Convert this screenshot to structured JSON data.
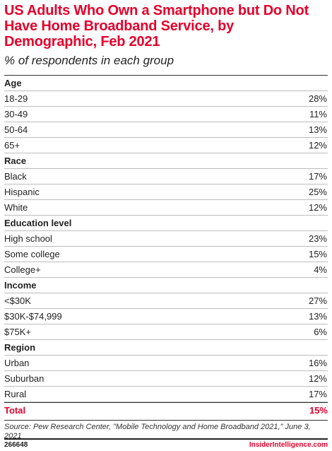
{
  "title": "US Adults Who Own a Smartphone but Do Not Have Home Broadband Service, by Demographic, Feb 2021",
  "subtitle": "% of respondents in each group",
  "chart_data": {
    "type": "table",
    "groups": [
      {
        "name": "Age",
        "rows": [
          {
            "label": "18-29",
            "value": "28%"
          },
          {
            "label": "30-49",
            "value": "11%"
          },
          {
            "label": "50-64",
            "value": "13%"
          },
          {
            "label": "65+",
            "value": "12%"
          }
        ]
      },
      {
        "name": "Race",
        "rows": [
          {
            "label": "Black",
            "value": "17%"
          },
          {
            "label": "Hispanic",
            "value": "25%"
          },
          {
            "label": "White",
            "value": "12%"
          }
        ]
      },
      {
        "name": "Education level",
        "rows": [
          {
            "label": "High school",
            "value": "23%"
          },
          {
            "label": "Some college",
            "value": "15%"
          },
          {
            "label": "College+",
            "value": "4%"
          }
        ]
      },
      {
        "name": "Income",
        "rows": [
          {
            "label": "<$30K",
            "value": "27%"
          },
          {
            "label": "$30K-$74,999",
            "value": "13%"
          },
          {
            "label": "$75K+",
            "value": "6%"
          }
        ]
      },
      {
        "name": "Region",
        "rows": [
          {
            "label": "Urban",
            "value": "16%"
          },
          {
            "label": "Suburban",
            "value": "12%"
          },
          {
            "label": "Rural",
            "value": "17%"
          }
        ]
      }
    ],
    "total": {
      "label": "Total",
      "value": "15%"
    }
  },
  "source": "Source: Pew Research Center, \"Mobile Technology and Home Broadband 2021,\" June 3, 2021",
  "footer": {
    "id": "266648",
    "brand": "InsiderIntelligence.com"
  },
  "colors": {
    "accent": "#e4002b",
    "text": "#222222",
    "rule": "#bdbdbd"
  }
}
